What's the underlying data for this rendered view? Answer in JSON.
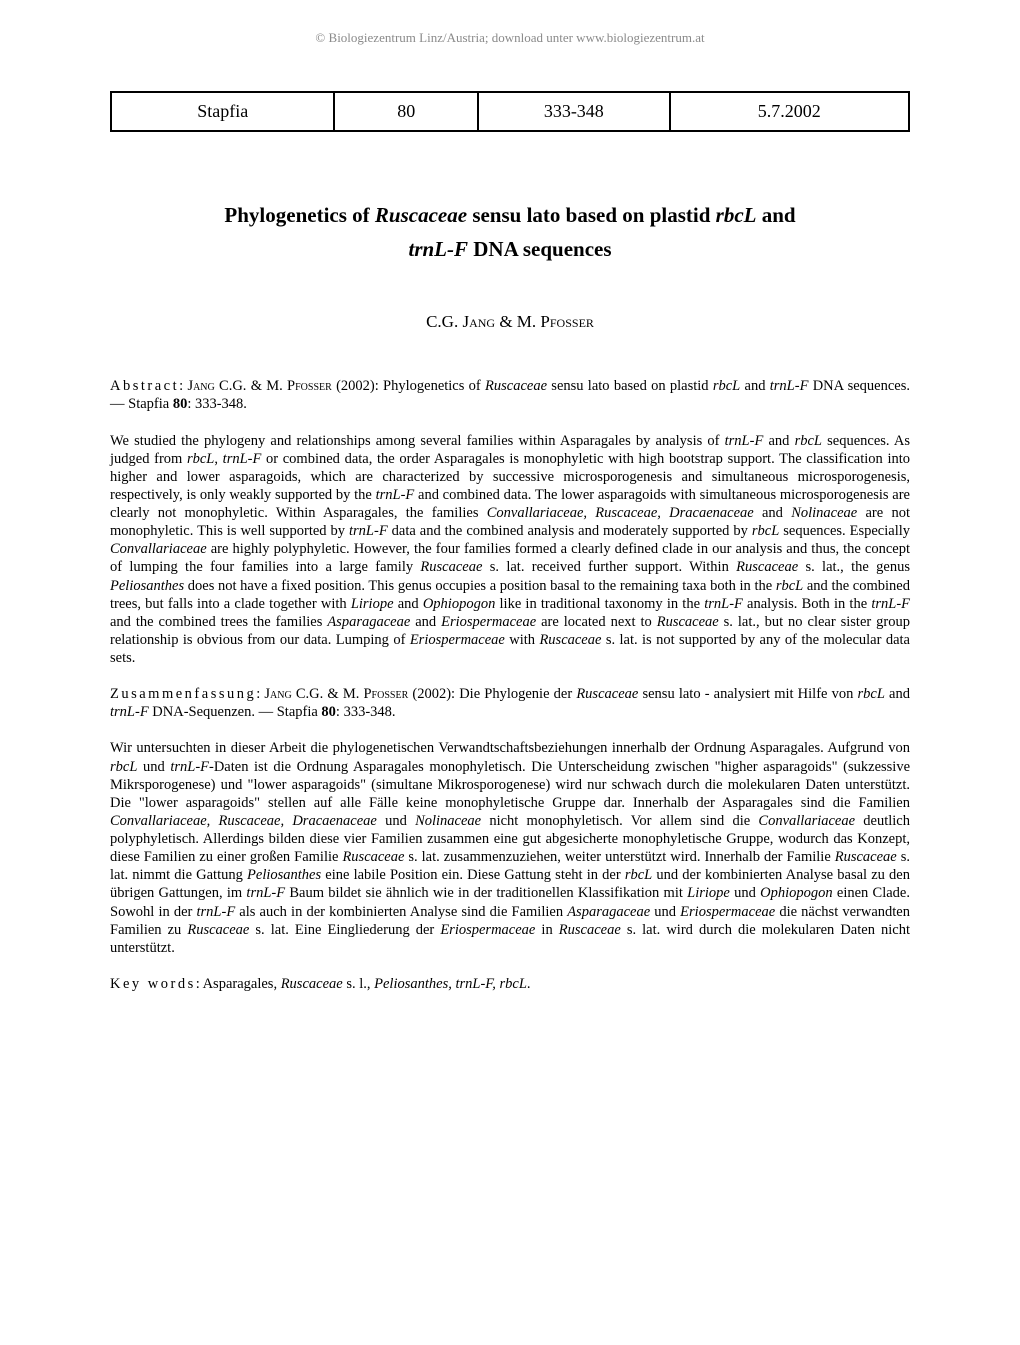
{
  "watermark": "© Biologiezentrum Linz/Austria; download unter www.biologiezentrum.at",
  "header": {
    "journal": "Stapfia",
    "volume": "80",
    "pages": "333-348",
    "date": "5.7.2002"
  },
  "title": {
    "line1_prefix": "Phylogenetics of ",
    "line1_italic1": "Ruscaceae",
    "line1_mid": " sensu lato based on plastid ",
    "line1_italic2": "rbcL",
    "line1_suffix": " and",
    "line2_italic": "trnL-F",
    "line2_suffix": " DNA sequences"
  },
  "authors": {
    "author1_first": "C.G. ",
    "author1_last": "Jang",
    "separator": " & M. ",
    "author2_last": "Pfosser"
  },
  "abstract": {
    "label": "Abstract",
    "citation_prefix": ": ",
    "citation_authors": "Jang",
    "citation_text1": " C.G. & M. ",
    "citation_authors2": "Pfosser",
    "citation_text2": " (2002): Phylogenetics of ",
    "citation_italic1": "Ruscaceae",
    "citation_text3": " sensu lato based on plastid ",
    "citation_italic2": "rbcL",
    "citation_text4": " and ",
    "citation_italic3": "trnL-F",
    "citation_text5": " DNA sequences. — Stapfia ",
    "citation_bold": "80",
    "citation_text6": ": 333-348.",
    "body_p1": "We studied the phylogeny and relationships among several families within Asparagales by analysis of ",
    "body_i1": "trnL-F",
    "body_p2": " and ",
    "body_i2": "rbcL",
    "body_p3": " sequences. As judged from ",
    "body_i3": "rbcL",
    "body_p4": ", ",
    "body_i4": "trnL-F",
    "body_p5": " or combined data, the order Asparagales is monophyletic with high bootstrap support. The classification into higher and lower asparagoids, which are characterized by successive microsporogenesis and simultaneous microsporogenesis, respectively, is only weakly supported by the ",
    "body_i5": "trnL-F",
    "body_p6": " and combined data. The lower asparagoids with simultaneous microsporogenesis are clearly not monophyletic. Within Asparagales, the families ",
    "body_i6": "Convallariaceae, Ruscaceae, Dracaenaceae",
    "body_p7": " and ",
    "body_i7": "Nolinaceae",
    "body_p8": " are not monophyletic. This is well supported by ",
    "body_i8": "trnL-F",
    "body_p9": " data and the combined analysis and moderately supported by ",
    "body_i9": "rbcL",
    "body_p10": " sequences. Especially ",
    "body_i10": "Convallariaceae",
    "body_p11": " are highly polyphyletic. However, the four families formed a clearly defined clade in our analysis and thus, the concept of lumping the four families into a large family ",
    "body_i11": "Ruscaceae",
    "body_p12": " s. lat. received further support. Within ",
    "body_i12": "Ruscaceae",
    "body_p13": " s. lat., the genus ",
    "body_i13": "Peliosanthes",
    "body_p14": " does not have a fixed position. This genus occupies a position basal to the remaining taxa both in the ",
    "body_i14": "rbcL",
    "body_p15": " and the combined trees, but falls into a clade together with ",
    "body_i15": "Liriope",
    "body_p16": " and ",
    "body_i16": "Ophiopogon",
    "body_p17": " like in traditional taxonomy in the ",
    "body_i17": "trnL-F",
    "body_p18": " analysis. Both in the ",
    "body_i18": "trnL-F",
    "body_p19": " and the combined trees the families ",
    "body_i19": "Asparagaceae",
    "body_p20": " and ",
    "body_i20": "Eriospermaceae",
    "body_p21": " are located next to ",
    "body_i21": "Ruscaceae",
    "body_p22": " s. lat., but no clear sister group relationship is obvious from our data. Lumping of ",
    "body_i22": "Eriospermaceae",
    "body_p23": " with ",
    "body_i23": "Ruscaceae",
    "body_p24": " s. lat. is not supported by any of the molecular data sets."
  },
  "zusammenfassung": {
    "label": "Zusammenfassung",
    "citation_prefix": ": ",
    "citation_authors": "Jang",
    "citation_text1": " C.G. & M. ",
    "citation_authors2": "Pfosser",
    "citation_text2": " (2002): Die Phylogenie der ",
    "citation_italic1": "Ruscaceae",
    "citation_text3": " sensu lato - analysiert mit Hilfe von ",
    "citation_italic2": "rbcL",
    "citation_text4": " and ",
    "citation_italic3": "trnL-F",
    "citation_text5": " DNA-Sequenzen. — Stapfia ",
    "citation_bold": "80",
    "citation_text6": ": 333-348.",
    "body_p1": "Wir untersuchten in dieser Arbeit die phylogenetischen Verwandtschaftsbeziehungen innerhalb der Ordnung Asparagales. Aufgrund von ",
    "body_i1": "rbcL",
    "body_p2": " und ",
    "body_i2": "trnL-F",
    "body_p3": "-Daten ist die Ordnung Asparagales monophyletisch. Die Unterscheidung zwischen \"higher asparagoids\" (sukzessive Mikrsporogenese) und \"lower asparagoids\" (simultane Mikrosporogenese) wird nur schwach durch die molekularen Daten unterstützt. Die \"lower asparagoids\" stellen auf alle Fälle keine monophyletische Gruppe dar. Innerhalb der Asparagales sind die Familien ",
    "body_i3": "Convallariaceae, Ruscaceae, Dracaenaceae",
    "body_p4": " und ",
    "body_i4": "Nolinaceae",
    "body_p5": " nicht monophyletisch. Vor allem sind die ",
    "body_i5": "Convallariaceae",
    "body_p6": " deutlich polyphyletisch. Allerdings bilden diese vier Familien zusammen eine gut abgesicherte monophyletische Gruppe, wodurch das Konzept, diese Familien zu einer großen Familie ",
    "body_i6": "Ruscaceae",
    "body_p7": " s. lat. zusammenzuziehen, weiter unterstützt wird. Innerhalb der Familie ",
    "body_i7": "Ruscaceae",
    "body_p8": " s. lat. nimmt die Gattung ",
    "body_i8": "Peliosanthes",
    "body_p9": " eine labile Position ein. Diese Gattung steht in der ",
    "body_i9": "rbcL",
    "body_p10": " und der kombinierten Analyse basal zu den übrigen Gattungen, im ",
    "body_i10": "trnL-F",
    "body_p11": " Baum bildet sie ähnlich wie in der traditionellen Klassifikation mit ",
    "body_i11": "Liriope",
    "body_p12": " und ",
    "body_i12": "Ophiopogon",
    "body_p13": " einen Clade. Sowohl in der ",
    "body_i13": "trnL-F",
    "body_p14": " als auch in der kombinierten Analyse sind die Familien ",
    "body_i14": "Asparagaceae",
    "body_p15": " und ",
    "body_i15": "Eriospermaceae",
    "body_p16": " die nächst verwandten Familien zu ",
    "body_i16": "Ruscaceae",
    "body_p17": " s. lat. Eine Eingliederung der ",
    "body_i17": "Eriospermaceae",
    "body_p18": " in ",
    "body_i18": "Ruscaceae",
    "body_p19": " s. lat. wird durch die molekularen Daten nicht unterstützt."
  },
  "keywords": {
    "label": "Key words",
    "prefix": ": Asparagales, ",
    "italic1": "Ruscaceae",
    "text1": " s. l., ",
    "italic2": "Peliosanthes, trnL-F, rbcL",
    "suffix": "."
  }
}
